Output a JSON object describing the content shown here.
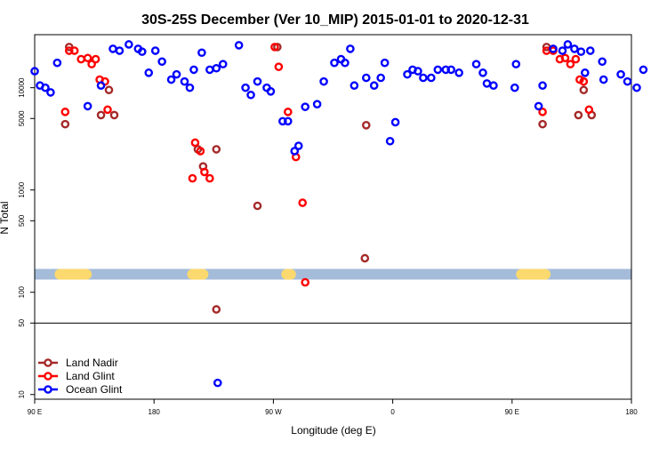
{
  "chart_data": {
    "type": "scatter",
    "title": "30S-25S December (Ver 10_MIP)   2015-01-01 to 2020-12-31",
    "xlabel": "Longitude (deg E)",
    "ylabel": "N Total",
    "x_scale": "longitude, wrapping from 90 E eastward to 180 (one and a half turns of the globe)",
    "y_scale": "log",
    "ylim": [
      9,
      33000
    ],
    "x_ticks": [
      "90 E",
      "180",
      "90 W",
      "0",
      "90 E",
      "180"
    ],
    "y_ticks": [
      "10",
      "50",
      "100",
      "500",
      "1000",
      "5000",
      "10000"
    ],
    "grid": false,
    "legend_position": "bottom-left",
    "land_band_color": "#fcd96e",
    "ocean_band_color": "#a4bcd9",
    "series": [
      {
        "name": "Land Nadir",
        "color": "#a52a2a",
        "x": [
          113,
          116,
          140,
          146,
          150,
          213,
          217,
          227,
          227,
          258,
          273,
          339,
          340,
          473,
          476,
          500,
          504,
          510
        ],
        "y": [
          4400,
          25000,
          5400,
          9500,
          5400,
          2500,
          1700,
          2500,
          68,
          700,
          25000,
          215,
          4300,
          4400,
          25000,
          5400,
          9500,
          5400
        ]
      },
      {
        "name": "Land Glint",
        "color": "#ff0000",
        "x": [
          113,
          116,
          120,
          125,
          130,
          133,
          136,
          139,
          143,
          145,
          209,
          211,
          215,
          218,
          222,
          271,
          274,
          281,
          287,
          292,
          294,
          473,
          476,
          481,
          486,
          490,
          494,
          498,
          501,
          504,
          508
        ],
        "y": [
          5800,
          23000,
          23000,
          19000,
          19500,
          17000,
          19000,
          12000,
          11500,
          6100,
          1300,
          2900,
          2400,
          1500,
          1300,
          25000,
          16000,
          5800,
          2100,
          750,
          125,
          5800,
          23000,
          23000,
          19000,
          19500,
          17000,
          19000,
          12000,
          11500,
          6100
        ]
      },
      {
        "name": "Ocean Glint",
        "color": "#0000ff",
        "x": [
          90,
          94,
          98,
          102,
          107,
          130,
          140,
          149,
          154,
          161,
          168,
          171,
          176,
          181,
          186,
          193,
          197,
          203,
          207,
          210,
          216,
          222,
          227,
          232,
          244,
          249,
          253,
          258,
          265,
          268,
          277,
          281,
          286,
          289,
          294,
          303,
          308,
          316,
          321,
          324,
          328,
          331,
          340,
          346,
          351,
          354,
          358,
          362,
          371,
          375,
          379,
          383,
          389,
          394,
          400,
          404,
          410,
          423,
          428,
          431,
          436,
          452,
          453,
          470,
          473,
          481,
          488,
          492,
          497,
          502,
          505,
          509,
          518,
          519,
          532,
          537,
          544,
          549
        ],
        "y": [
          14500,
          10500,
          10000,
          9000,
          17500,
          6600,
          10500,
          24000,
          23000,
          26500,
          24000,
          22500,
          14000,
          23000,
          18000,
          12000,
          13500,
          11500,
          10000,
          15000,
          22000,
          15000,
          15500,
          17000,
          26000,
          10000,
          8500,
          11500,
          10000,
          9200,
          4700,
          4700,
          2400,
          2700,
          6500,
          6900,
          11500,
          17500,
          19000,
          17500,
          24000,
          10500,
          12500,
          10500,
          12500,
          17500,
          3000,
          4600,
          13500,
          15000,
          14500,
          12500,
          12500,
          15000,
          15000,
          15000,
          14000,
          17000,
          14000,
          11000,
          10500,
          10000,
          17000,
          6600,
          10500,
          24000,
          23000,
          26500,
          24000,
          22500,
          14000,
          23000,
          18000,
          12000,
          13500,
          11500,
          10000,
          15000
        ],
        "extra_points_note": "one additional ocean glint point near x=228 at very low count",
        "x_low": [
          228
        ],
        "y_low": [
          13
        ]
      }
    ],
    "surface_band": {
      "y_value": 150,
      "land_segments": [
        [
          105,
          133
        ],
        [
          205,
          221
        ],
        [
          276,
          287
        ],
        [
          453,
          479
        ]
      ]
    }
  }
}
